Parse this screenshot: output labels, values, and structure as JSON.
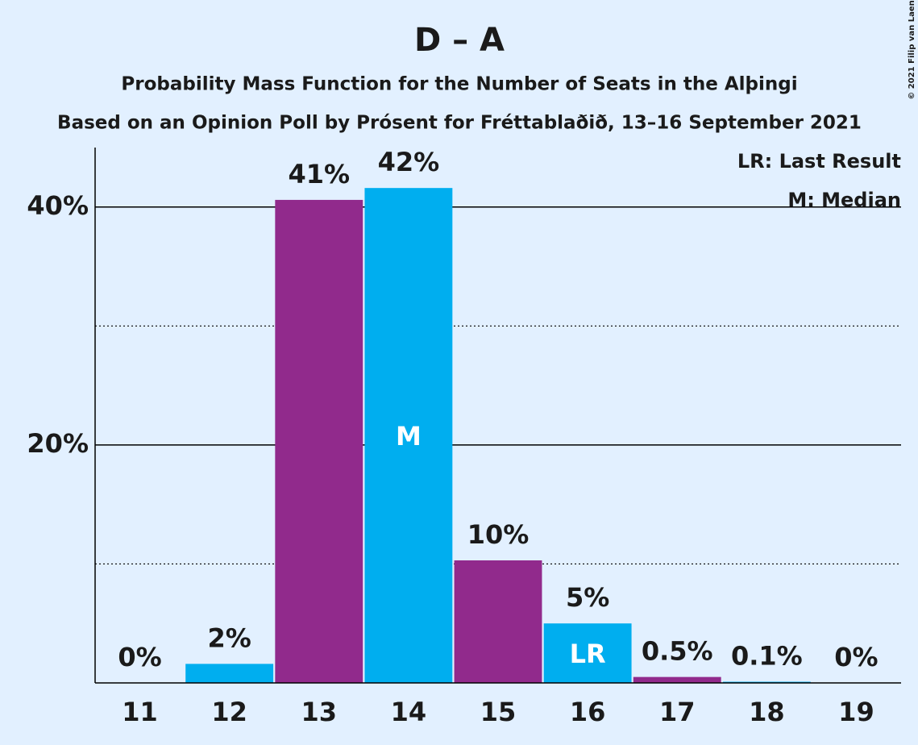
{
  "chart_data": {
    "type": "bar",
    "title": "D – A",
    "subtitle": "Probability Mass Function for the Number of Seats in the Alþingi",
    "subtitle2": "Based on an Opinion Poll by Prósent for Fréttablaðið, 13–16 September 2021",
    "categories": [
      "11",
      "12",
      "13",
      "14",
      "15",
      "16",
      "17",
      "18",
      "19"
    ],
    "values": [
      0,
      1.6,
      40.6,
      41.6,
      10.3,
      5.0,
      0.5,
      0.1,
      0
    ],
    "value_labels": [
      "0%",
      "2%",
      "41%",
      "42%",
      "10%",
      "5%",
      "0.5%",
      "0.1%",
      "0%"
    ],
    "colors": [
      "#00aeef",
      "#00aeef",
      "#912a8c",
      "#00aeef",
      "#912a8c",
      "#00aeef",
      "#912a8c",
      "#00aeef",
      "#912a8c"
    ],
    "bar_labels": [
      null,
      null,
      null,
      "M",
      null,
      "LR",
      null,
      null,
      null
    ],
    "ylim": [
      0,
      45
    ],
    "yticks": [
      {
        "value": 20,
        "label": "20%"
      },
      {
        "value": 40,
        "label": "40%"
      }
    ],
    "minor_yticks": [
      10,
      30
    ],
    "grid": true,
    "legend": [
      "LR: Last Result",
      "M: Median"
    ],
    "copyright": "© 2021 Filip van Laenen"
  }
}
